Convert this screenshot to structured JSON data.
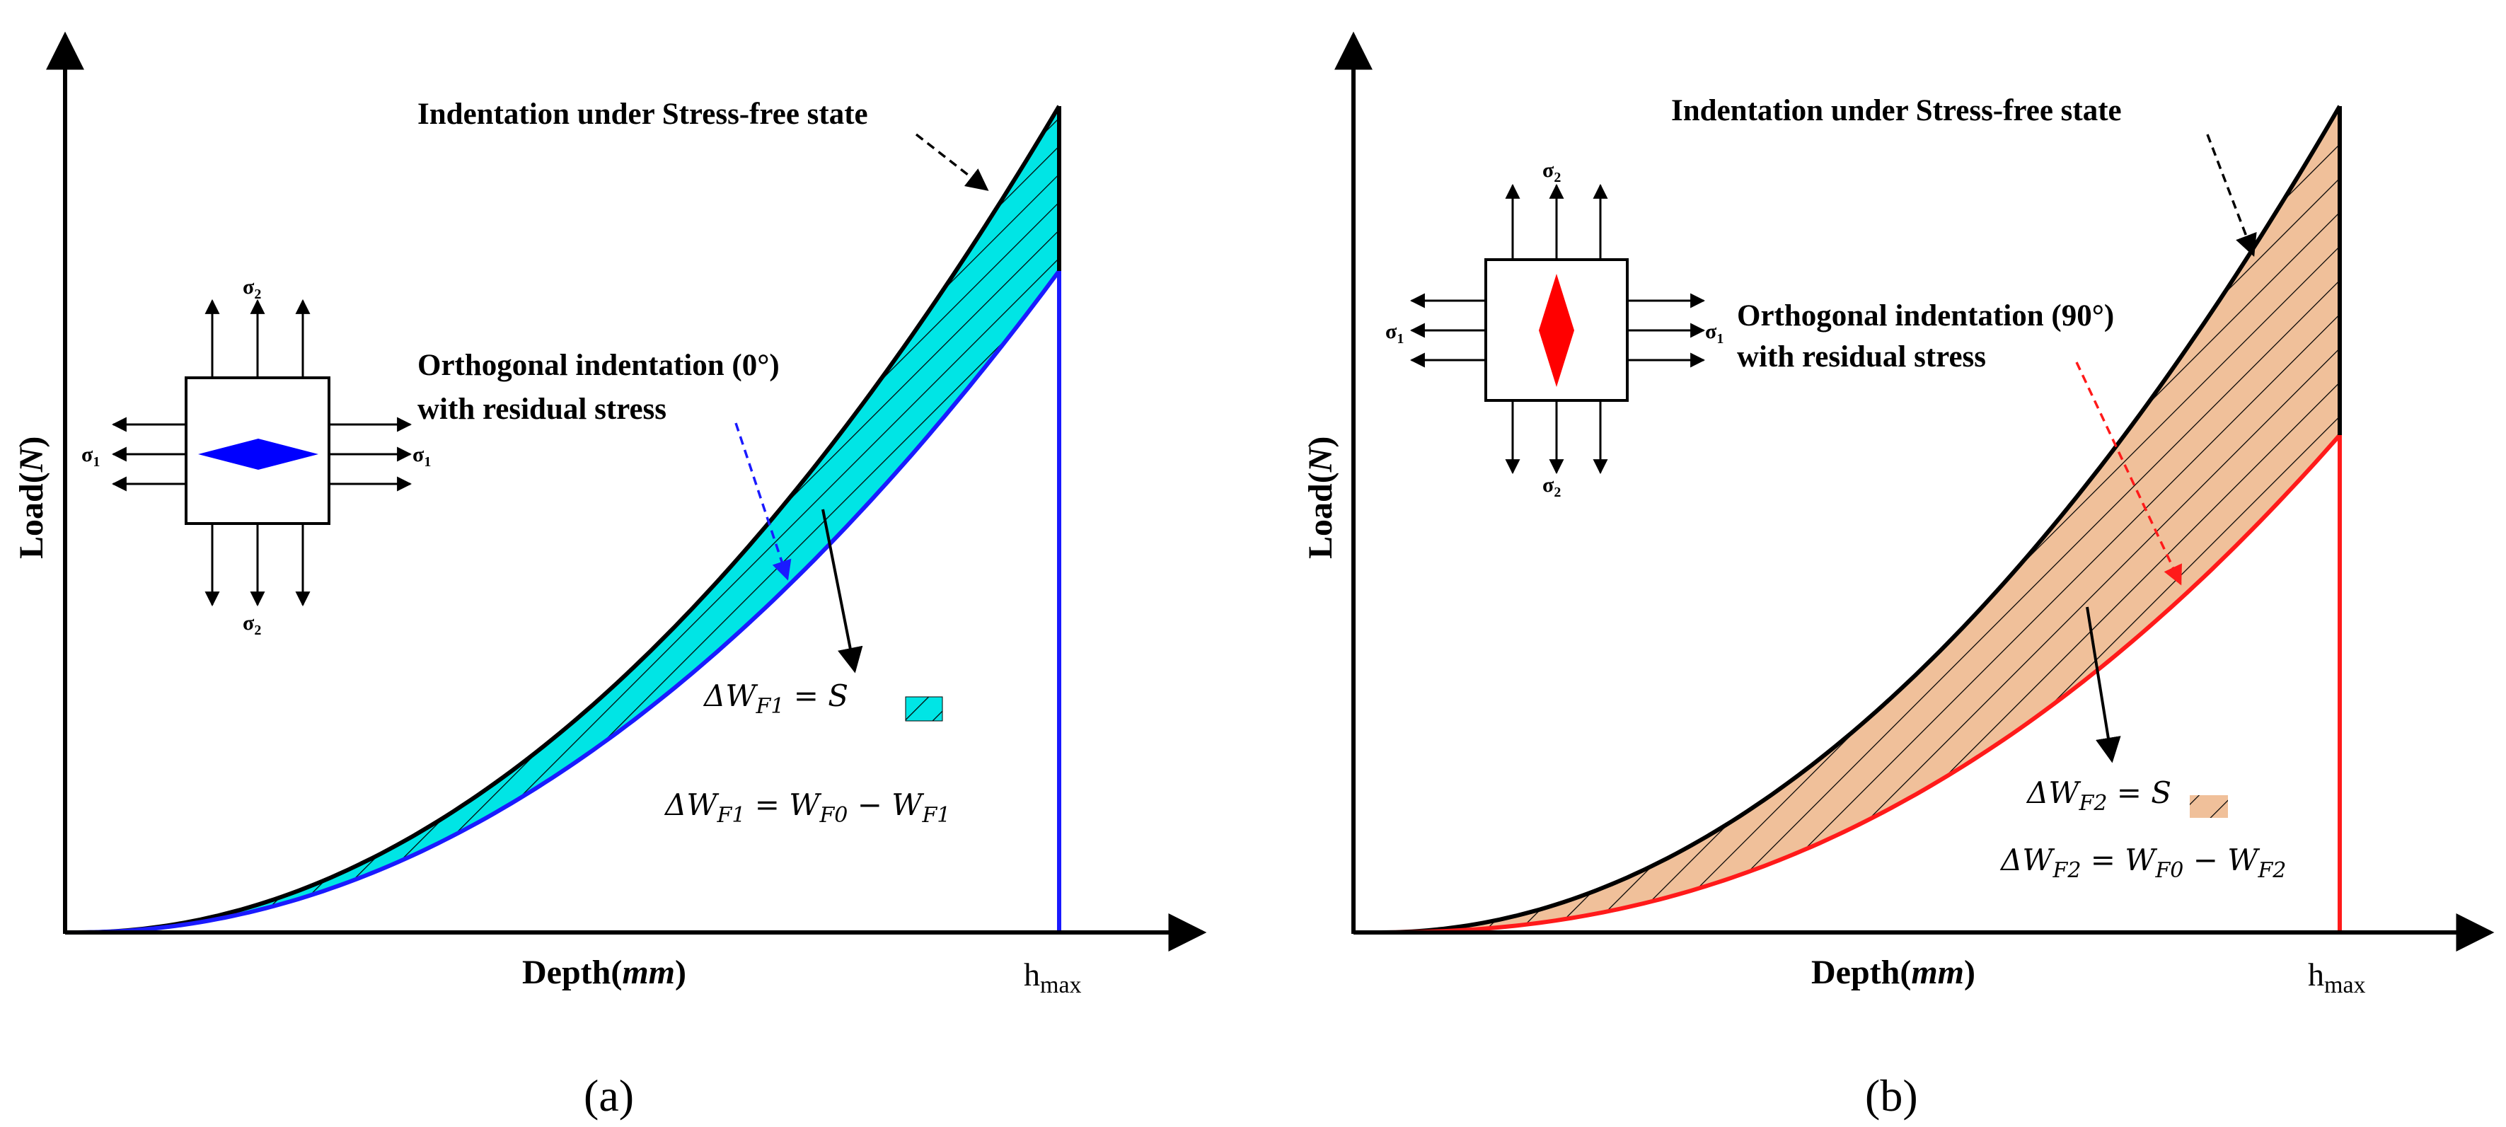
{
  "figure": {
    "panels": [
      {
        "id": "a",
        "caption": "(a)",
        "y_axis_label": "Load(N)",
        "y_axis_label_plain": "Load(",
        "y_axis_label_italic": "N",
        "y_axis_label_close": ")",
        "x_axis_label_plain": "Depth(",
        "x_axis_label_italic": "mm",
        "x_axis_label_close": ")",
        "hmax_label_main": "h",
        "hmax_label_sub": "max",
        "stress_free_label": "Indentation under Stress-free state",
        "residual_label_line1": "Orthogonal indentation (0°)",
        "residual_label_line2": "with residual stress",
        "sigma1_label": "σ",
        "sigma1_sub": "1",
        "sigma2_label": "σ",
        "sigma2_sub": "2",
        "eq1_lhs": "ΔW",
        "eq1_lhs_sub": "F1",
        "eq1_eq": " = S",
        "eq2_lhs": "ΔW",
        "eq2_lhs_sub": "F1",
        "eq2_mid": " = W",
        "eq2_mid_sub": "F0",
        "eq2_minus": " − W",
        "eq2_rhs_sub": "F1",
        "fill_color": "#00e5e5",
        "curve_color": "#1a1aff",
        "diamond_color": "#0000ff",
        "diamond_orientation": "horizontal"
      },
      {
        "id": "b",
        "caption": "(b)",
        "y_axis_label_plain": "Load(",
        "y_axis_label_italic": "N",
        "y_axis_label_close": ")",
        "x_axis_label_plain": "Depth(",
        "x_axis_label_italic": "mm",
        "x_axis_label_close": ")",
        "hmax_label_main": "h",
        "hmax_label_sub": "max",
        "stress_free_label": "Indentation under Stress-free state",
        "residual_label_line1": "Orthogonal indentation (90°)",
        "residual_label_line2": "with residual stress",
        "sigma1_label": "σ",
        "sigma1_sub": "1",
        "sigma2_label": "σ",
        "sigma2_sub": "2",
        "eq1_lhs": "ΔW",
        "eq1_lhs_sub": "F2",
        "eq1_eq": " = S",
        "eq2_lhs": "ΔW",
        "eq2_lhs_sub": "F2",
        "eq2_mid": " = W",
        "eq2_mid_sub": "F0",
        "eq2_minus": " − W",
        "eq2_rhs_sub": "F2",
        "fill_color": "#f0c09a",
        "curve_color": "#ff1a1a",
        "diamond_color": "#ff0000",
        "diamond_orientation": "vertical"
      }
    ]
  }
}
